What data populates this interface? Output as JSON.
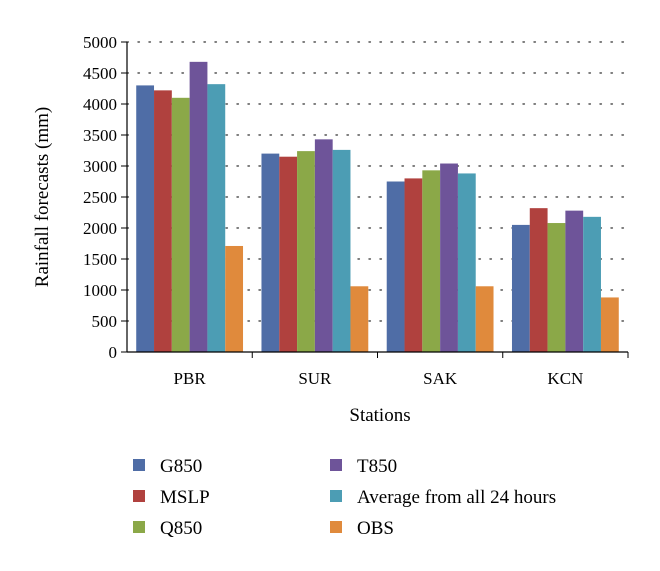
{
  "chart_data": {
    "type": "bar",
    "title": "",
    "xlabel": "Stations",
    "ylabel": "Rainfall forecasts (mm)",
    "ylim": [
      0,
      5000
    ],
    "yticks": [
      0,
      500,
      1000,
      1500,
      2000,
      2500,
      3000,
      3500,
      4000,
      4500,
      5000
    ],
    "grid": "horizontal-dotted",
    "legend_position": "bottom",
    "categories": [
      "PBR",
      "SUR",
      "SAK",
      "KCN"
    ],
    "series": [
      {
        "name": "G850",
        "color": "#4F6DA6",
        "values": [
          4300,
          3200,
          2750,
          2050
        ]
      },
      {
        "name": "MSLP",
        "color": "#B0413E",
        "values": [
          4220,
          3150,
          2800,
          2320
        ]
      },
      {
        "name": "Q850",
        "color": "#8BA848",
        "values": [
          4100,
          3240,
          2930,
          2080
        ]
      },
      {
        "name": "T850",
        "color": "#6E5499",
        "values": [
          4680,
          3430,
          3040,
          2280
        ]
      },
      {
        "name": "Average from all 24 hours",
        "color": "#4C9DB4",
        "values": [
          4320,
          3260,
          2880,
          2180
        ]
      },
      {
        "name": "OBS",
        "color": "#E08A3C",
        "values": [
          1710,
          1060,
          1060,
          880
        ]
      }
    ]
  }
}
